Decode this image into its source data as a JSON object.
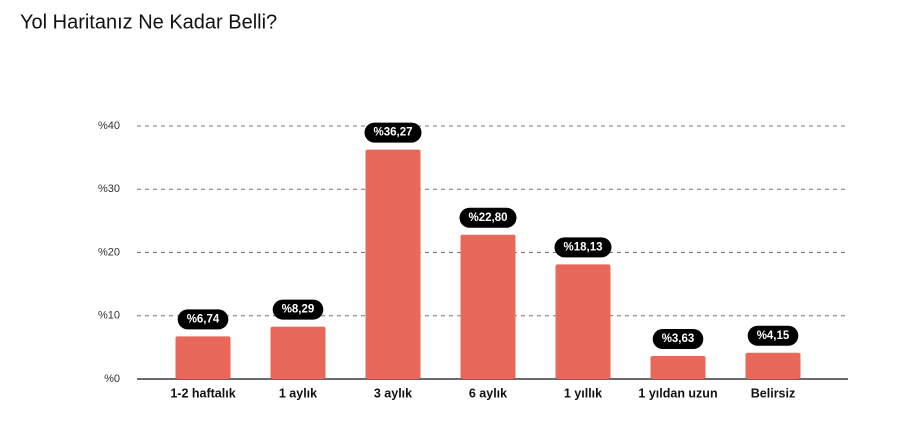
{
  "chart_data": {
    "type": "bar",
    "title": "Yol Haritanız Ne Kadar Belli?",
    "categories": [
      "1-2 haftalık",
      "1 aylık",
      "3 aylık",
      "6 aylık",
      "1 yıllık",
      "1 yıldan uzun",
      "Belirsiz"
    ],
    "values": [
      6.74,
      8.29,
      36.27,
      22.8,
      18.13,
      3.63,
      4.15
    ],
    "value_labels": [
      "%6,74",
      "%8,29",
      "%36,27",
      "%22,80",
      "%18,13",
      "%3,63",
      "%4,15"
    ],
    "color": "#e8695a",
    "ylim": [
      0,
      40
    ],
    "yticks": [
      {
        "value": 0,
        "label": "%0"
      },
      {
        "value": 10,
        "label": "%10"
      },
      {
        "value": 20,
        "label": "%20"
      },
      {
        "value": 30,
        "label": "%30"
      },
      {
        "value": 40,
        "label": "%40"
      }
    ],
    "grid": true
  }
}
